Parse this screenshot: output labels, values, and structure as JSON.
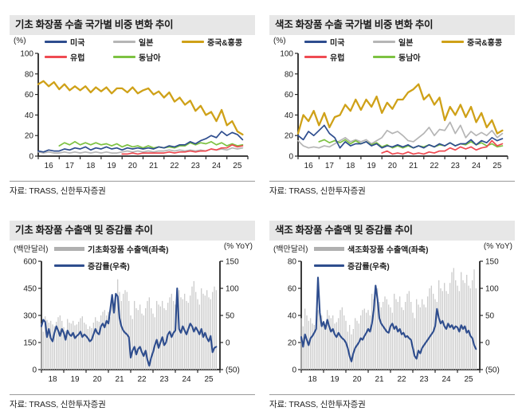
{
  "colors": {
    "navy": "#2e4d8e",
    "gray": "#b5b5b5",
    "gold": "#cfa118",
    "red": "#ef4b52",
    "green": "#7dc242",
    "bar": "#cbcbcb",
    "barLegend": "#b0b0b0",
    "axis": "#262626",
    "text": "#222222",
    "title_bg": "#e7e7e7",
    "title_text": "#1a1a1a"
  },
  "chart_data": [
    {
      "type": "line",
      "title": "기초 화장품 수출 국가별 비중 변화 추이",
      "source": "자료: TRASS, 신한투자증권",
      "unit_left": "(%)",
      "xlim": [
        2016,
        2026
      ],
      "x_tick_start": 2016,
      "x_tick_labels": [
        "16",
        "17",
        "18",
        "19",
        "20",
        "21",
        "22",
        "23",
        "24",
        "25"
      ],
      "ylim": [
        0,
        100
      ],
      "y_ticks": [
        0,
        20,
        40,
        60,
        80,
        100
      ],
      "legend": [
        {
          "label": "미국",
          "color": "navy",
          "kind": "line"
        },
        {
          "label": "일본",
          "color": "gray",
          "kind": "line"
        },
        {
          "label": "중국&홍콩",
          "color": "gold",
          "kind": "line"
        },
        {
          "label": "유럽",
          "color": "red",
          "kind": "line"
        },
        {
          "label": "동남아",
          "color": "green",
          "kind": "line"
        }
      ],
      "series": [
        {
          "name": "일본",
          "color": "gray",
          "x_start": 2016,
          "x_step": 0.25,
          "values": [
            4,
            3,
            4,
            3,
            3,
            4,
            3,
            4,
            3,
            4,
            3,
            4,
            3,
            4,
            3,
            3,
            4,
            5,
            4,
            5,
            4,
            5,
            4,
            5,
            5,
            6,
            5,
            6,
            5,
            6,
            5,
            6,
            5,
            7,
            6,
            7,
            6,
            8,
            7,
            8
          ]
        },
        {
          "name": "동남아",
          "color": "green",
          "x_start": 2017,
          "x_step": 0.25,
          "values": [
            10,
            13,
            11,
            14,
            11,
            13,
            11,
            13,
            11,
            12,
            10,
            12,
            9,
            11,
            9,
            10,
            8,
            10,
            8,
            9,
            8,
            9,
            8,
            10,
            10,
            13,
            11,
            13,
            12,
            14,
            11,
            13,
            10,
            12,
            10,
            11
          ]
        },
        {
          "name": "유럽",
          "color": "red",
          "x_start": 2020,
          "x_step": 0.25,
          "values": [
            2,
            2,
            3,
            2,
            3,
            3,
            3,
            3,
            3,
            4,
            3,
            4,
            4,
            5,
            4,
            5,
            5,
            7,
            6,
            8,
            8,
            11,
            9,
            10
          ]
        },
        {
          "name": "미국",
          "color": "navy",
          "x_start": 2016,
          "x_step": 0.25,
          "values": [
            5,
            4,
            6,
            5,
            5,
            7,
            6,
            8,
            7,
            9,
            6,
            8,
            7,
            9,
            7,
            8,
            6,
            8,
            7,
            8,
            7,
            8,
            7,
            9,
            8,
            10,
            9,
            11,
            11,
            14,
            12,
            15,
            17,
            20,
            18,
            24,
            20,
            23,
            21,
            16
          ]
        },
        {
          "name": "중국&홍콩",
          "color": "gold",
          "x_start": 2016,
          "x_step": 0.25,
          "values": [
            70,
            73,
            68,
            72,
            65,
            70,
            64,
            68,
            64,
            68,
            62,
            67,
            63,
            67,
            61,
            66,
            66,
            62,
            67,
            61,
            64,
            66,
            60,
            63,
            57,
            62,
            53,
            57,
            50,
            54,
            44,
            49,
            40,
            43,
            34,
            45,
            30,
            34,
            24,
            21
          ]
        }
      ]
    },
    {
      "type": "line",
      "title": "색조 화장품 수출 국가별 비중 변화 추이",
      "source": "자료: TRASS, 신한투자증권",
      "unit_left": "(%)",
      "xlim": [
        2016,
        2026
      ],
      "x_tick_start": 2016,
      "x_tick_labels": [
        "16",
        "17",
        "18",
        "19",
        "20",
        "21",
        "22",
        "23",
        "24",
        "25"
      ],
      "ylim": [
        0,
        100
      ],
      "y_ticks": [
        0,
        20,
        40,
        60,
        80,
        100
      ],
      "legend": [
        {
          "label": "미국",
          "color": "navy",
          "kind": "line"
        },
        {
          "label": "일본",
          "color": "gray",
          "kind": "line"
        },
        {
          "label": "중국&홍콩",
          "color": "gold",
          "kind": "line"
        },
        {
          "label": "유럽",
          "color": "red",
          "kind": "line"
        },
        {
          "label": "동남아",
          "color": "green",
          "kind": "line"
        }
      ],
      "series": [
        {
          "name": "일본",
          "color": "gray",
          "x_start": 2016,
          "x_step": 0.25,
          "values": [
            15,
            10,
            8,
            9,
            8,
            10,
            9,
            12,
            15,
            18,
            14,
            16,
            14,
            16,
            12,
            15,
            18,
            25,
            22,
            24,
            20,
            15,
            14,
            18,
            22,
            28,
            20,
            26,
            25,
            33,
            22,
            30,
            18,
            24,
            20,
            23,
            20,
            25,
            18,
            22
          ]
        },
        {
          "name": "동남아",
          "color": "green",
          "x_start": 2017,
          "x_step": 0.25,
          "values": [
            14,
            16,
            13,
            15,
            13,
            16,
            12,
            15,
            12,
            14,
            11,
            13,
            9,
            11,
            8,
            10,
            8,
            10,
            8,
            10,
            9,
            11,
            9,
            11,
            10,
            13,
            10,
            12,
            11,
            14,
            11,
            13,
            10,
            12,
            9,
            10
          ]
        },
        {
          "name": "유럽",
          "color": "red",
          "x_start": 2020,
          "x_step": 0.25,
          "values": [
            3,
            5,
            2,
            3,
            2,
            4,
            2,
            3,
            2,
            4,
            3,
            5,
            5,
            8,
            6,
            9,
            7,
            9,
            6,
            8,
            9,
            15,
            10,
            12
          ]
        },
        {
          "name": "미국",
          "color": "navy",
          "x_start": 2016,
          "x_step": 0.25,
          "values": [
            20,
            16,
            24,
            20,
            25,
            30,
            22,
            18,
            8,
            14,
            10,
            12,
            12,
            14,
            10,
            12,
            8,
            10,
            9,
            11,
            9,
            11,
            8,
            10,
            8,
            11,
            9,
            12,
            10,
            13,
            10,
            12,
            12,
            16,
            11,
            15,
            13,
            18,
            15,
            17
          ]
        },
        {
          "name": "중국&홍콩",
          "color": "gold",
          "x_start": 2016,
          "x_step": 0.25,
          "values": [
            22,
            40,
            34,
            44,
            30,
            42,
            28,
            38,
            40,
            50,
            44,
            55,
            45,
            55,
            48,
            58,
            42,
            52,
            46,
            55,
            55,
            62,
            65,
            70,
            55,
            60,
            50,
            57,
            35,
            48,
            40,
            50,
            38,
            48,
            33,
            42,
            28,
            35,
            22,
            25
          ]
        }
      ]
    },
    {
      "type": "combo",
      "title": "기초 화장품 수출액 및 증감률 추이",
      "source": "자료: TRASS, 신한투자증권",
      "unit_left": "(백만달러)",
      "unit_right": "(% YoY)",
      "xlim": [
        2018,
        2026
      ],
      "x_tick_start": 2018,
      "x_tick_labels": [
        "18",
        "19",
        "20",
        "21",
        "22",
        "23",
        "24",
        "25"
      ],
      "left_lim": [
        0,
        600
      ],
      "left_ticks": [
        0,
        150,
        300,
        450,
        600
      ],
      "right_lim": [
        -50,
        150
      ],
      "right_ticks": [
        {
          "label": "150",
          "value": 150
        },
        {
          "label": "100",
          "value": 100
        },
        {
          "label": "50",
          "value": 50
        },
        {
          "label": "0",
          "value": 0
        },
        {
          "label": "(50)",
          "value": -50
        }
      ],
      "legend": [
        {
          "label": "기초화장품 수출액(좌축)",
          "color": "barLegend",
          "kind": "bar"
        },
        {
          "label": "증감률(우축)",
          "color": "navy",
          "kind": "line"
        }
      ],
      "bars": {
        "name": "기초화장품 수출액(좌축)",
        "x_start": 2018,
        "x_step": 0.0833333,
        "values": [
          255,
          210,
          295,
          275,
          260,
          270,
          250,
          240,
          265,
          290,
          300,
          270,
          235,
          215,
          280,
          260,
          255,
          270,
          245,
          250,
          265,
          285,
          295,
          260,
          250,
          225,
          240,
          230,
          260,
          290,
          270,
          265,
          300,
          320,
          330,
          300,
          320,
          290,
          380,
          360,
          420,
          500,
          430,
          380,
          420,
          440,
          430,
          380,
          300,
          280,
          380,
          340,
          330,
          360,
          310,
          300,
          340,
          380,
          400,
          340,
          310,
          290,
          380,
          360,
          350,
          380,
          340,
          330,
          370,
          400,
          420,
          380,
          360,
          340,
          440,
          400,
          390,
          420,
          380,
          370,
          410,
          460,
          490,
          430,
          390,
          360,
          450,
          420,
          410,
          440,
          400,
          390,
          430,
          460,
          440
        ]
      },
      "line": {
        "name": "증감률(우축)",
        "color": "navy",
        "x_start": 2018,
        "x_step": 0.0833333,
        "values": [
          30,
          42,
          38,
          10,
          25,
          8,
          2,
          18,
          30,
          22,
          12,
          25,
          18,
          5,
          22,
          15,
          12,
          18,
          8,
          12,
          15,
          20,
          10,
          15,
          12,
          8,
          2,
          5,
          15,
          25,
          18,
          15,
          30,
          35,
          28,
          40,
          35,
          60,
          88,
          55,
          90,
          85,
          45,
          30,
          22,
          18,
          15,
          10,
          -28,
          -15,
          -8,
          -22,
          -12,
          -8,
          -18,
          -25,
          -15,
          -32,
          -43,
          -28,
          -18,
          -5,
          5,
          -10,
          0,
          10,
          -5,
          0,
          15,
          20,
          10,
          18,
          22,
          100,
          25,
          18,
          30,
          22,
          15,
          25,
          35,
          30,
          20,
          28,
          22,
          15,
          25,
          10,
          18,
          8,
          2,
          12,
          -18,
          -10,
          -8
        ]
      }
    },
    {
      "type": "combo",
      "title": "색조 화장품 수출액 및 증감률 추이",
      "source": "자료: TRASS, 신한투자증권",
      "unit_left": "(백만달러)",
      "unit_right": "(% YoY)",
      "xlim": [
        2018,
        2026
      ],
      "x_tick_start": 2018,
      "x_tick_labels": [
        "18",
        "19",
        "20",
        "21",
        "22",
        "23",
        "24",
        "25"
      ],
      "left_lim": [
        0,
        80
      ],
      "left_ticks": [
        0,
        20,
        40,
        60,
        80
      ],
      "right_lim": [
        -50,
        150
      ],
      "right_ticks": [
        {
          "label": "150",
          "value": 150
        },
        {
          "label": "100",
          "value": 100
        },
        {
          "label": "50",
          "value": 50
        },
        {
          "label": "0",
          "value": 0
        },
        {
          "label": "(50)",
          "value": -50
        }
      ],
      "legend": [
        {
          "label": "색조화장품 수출액(좌축)",
          "color": "barLegend",
          "kind": "bar"
        },
        {
          "label": "증감률(우축)",
          "color": "navy",
          "kind": "line"
        }
      ],
      "bars": {
        "name": "색조화장품 수출액(좌축)",
        "x_start": 2018,
        "x_step": 0.0833333,
        "values": [
          38,
          32,
          45,
          40,
          36,
          38,
          34,
          33,
          36,
          44,
          46,
          40,
          36,
          30,
          44,
          40,
          38,
          40,
          34,
          35,
          38,
          44,
          46,
          40,
          36,
          28,
          33,
          26,
          30,
          38,
          36,
          34,
          40,
          44,
          45,
          42,
          44,
          40,
          56,
          52,
          58,
          60,
          50,
          46,
          50,
          54,
          52,
          48,
          46,
          42,
          56,
          52,
          50,
          54,
          46,
          44,
          50,
          56,
          58,
          50,
          42,
          38,
          52,
          48,
          46,
          52,
          48,
          46,
          54,
          60,
          62,
          56,
          52,
          50,
          66,
          60,
          58,
          64,
          58,
          56,
          64,
          72,
          75,
          66,
          62,
          58,
          72,
          66,
          64,
          70,
          62,
          60,
          66,
          74,
          60
        ]
      },
      "line": {
        "name": "증감률(우축)",
        "color": "navy",
        "x_start": 2018,
        "x_step": 0.0833333,
        "values": [
          10,
          -8,
          15,
          5,
          -5,
          8,
          12,
          18,
          25,
          120,
          55,
          30,
          38,
          25,
          42,
          30,
          20,
          25,
          15,
          10,
          18,
          12,
          8,
          5,
          0,
          -10,
          -25,
          -35,
          -20,
          -10,
          -5,
          0,
          8,
          5,
          12,
          18,
          25,
          20,
          35,
          60,
          105,
          80,
          45,
          35,
          30,
          25,
          20,
          18,
          30,
          35,
          25,
          30,
          20,
          25,
          15,
          18,
          10,
          12,
          8,
          5,
          -10,
          -25,
          -30,
          -15,
          -20,
          -10,
          -5,
          0,
          5,
          10,
          15,
          20,
          30,
          62,
          45,
          35,
          40,
          30,
          25,
          35,
          28,
          32,
          25,
          30,
          28,
          20,
          32,
          25,
          30,
          18,
          22,
          12,
          8,
          -5,
          -12
        ]
      }
    }
  ]
}
